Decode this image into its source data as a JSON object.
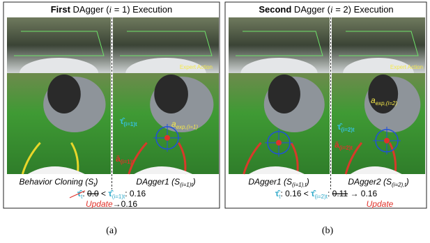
{
  "panels": [
    {
      "title": {
        "bold": "First",
        "before": " DAgger (",
        "var": "i",
        "after": " = 1) Execution"
      },
      "images": [
        {
          "label": {
            "main": "Behavior Cloning (S",
            "sub": "t",
            "end": ")"
          }
        },
        {
          "label": {
            "main": "DAgger1 (S",
            "sub": "(i=1)t",
            "end": ")"
          },
          "overlay": "Expert Action",
          "annotations": {
            "tau": "τ̂",
            "tau_sub": "(i=1)t",
            "abar": "ā",
            "abar_sub": "(i=1)t",
            "aexp": "a",
            "aexp_sub": "exp,(i=1)"
          }
        }
      ],
      "equation": {
        "tau": "τ̂",
        "tau_sub": "t",
        "sep1": ": ",
        "old_value": "0.0",
        "lt": " < ",
        "tau2": "τ̂",
        "tau2_sub": "(i=1)t",
        "sep2": ": ",
        "new_value": "0.16",
        "update": "Update",
        "arrow": "→",
        "updated_value": "0.16"
      },
      "caption": "(a)"
    },
    {
      "title": {
        "bold": "Second",
        "before": " DAgger (",
        "var": "i",
        "after": " = 2) Execution"
      },
      "images": [
        {
          "label": {
            "main": "DAgger1 (S",
            "sub": "(i=1),t",
            "end": ")"
          }
        },
        {
          "label": {
            "main": "DAgger2 (S",
            "sub": "(i=2),t",
            "end": ")"
          },
          "overlay": "Expert Action",
          "annotations": {
            "tau": "τ̂",
            "tau_sub": "(i=2)t",
            "abar": "ā",
            "abar_sub": "(i=2)t",
            "aexp": "a",
            "aexp_sub": "exp,(i=2)"
          }
        }
      ],
      "equation": {
        "tau": "τ̂",
        "tau_sub": "t",
        "sep1": ": ",
        "value": "0.16",
        "lt": " < ",
        "tau2": "τ̂",
        "tau2_sub": "(i=2)t",
        "sep2": ": ",
        "old_value": "0.11",
        "arrow": " → ",
        "updated_value": "0.16",
        "update": "Update"
      },
      "caption": "(b)"
    }
  ]
}
